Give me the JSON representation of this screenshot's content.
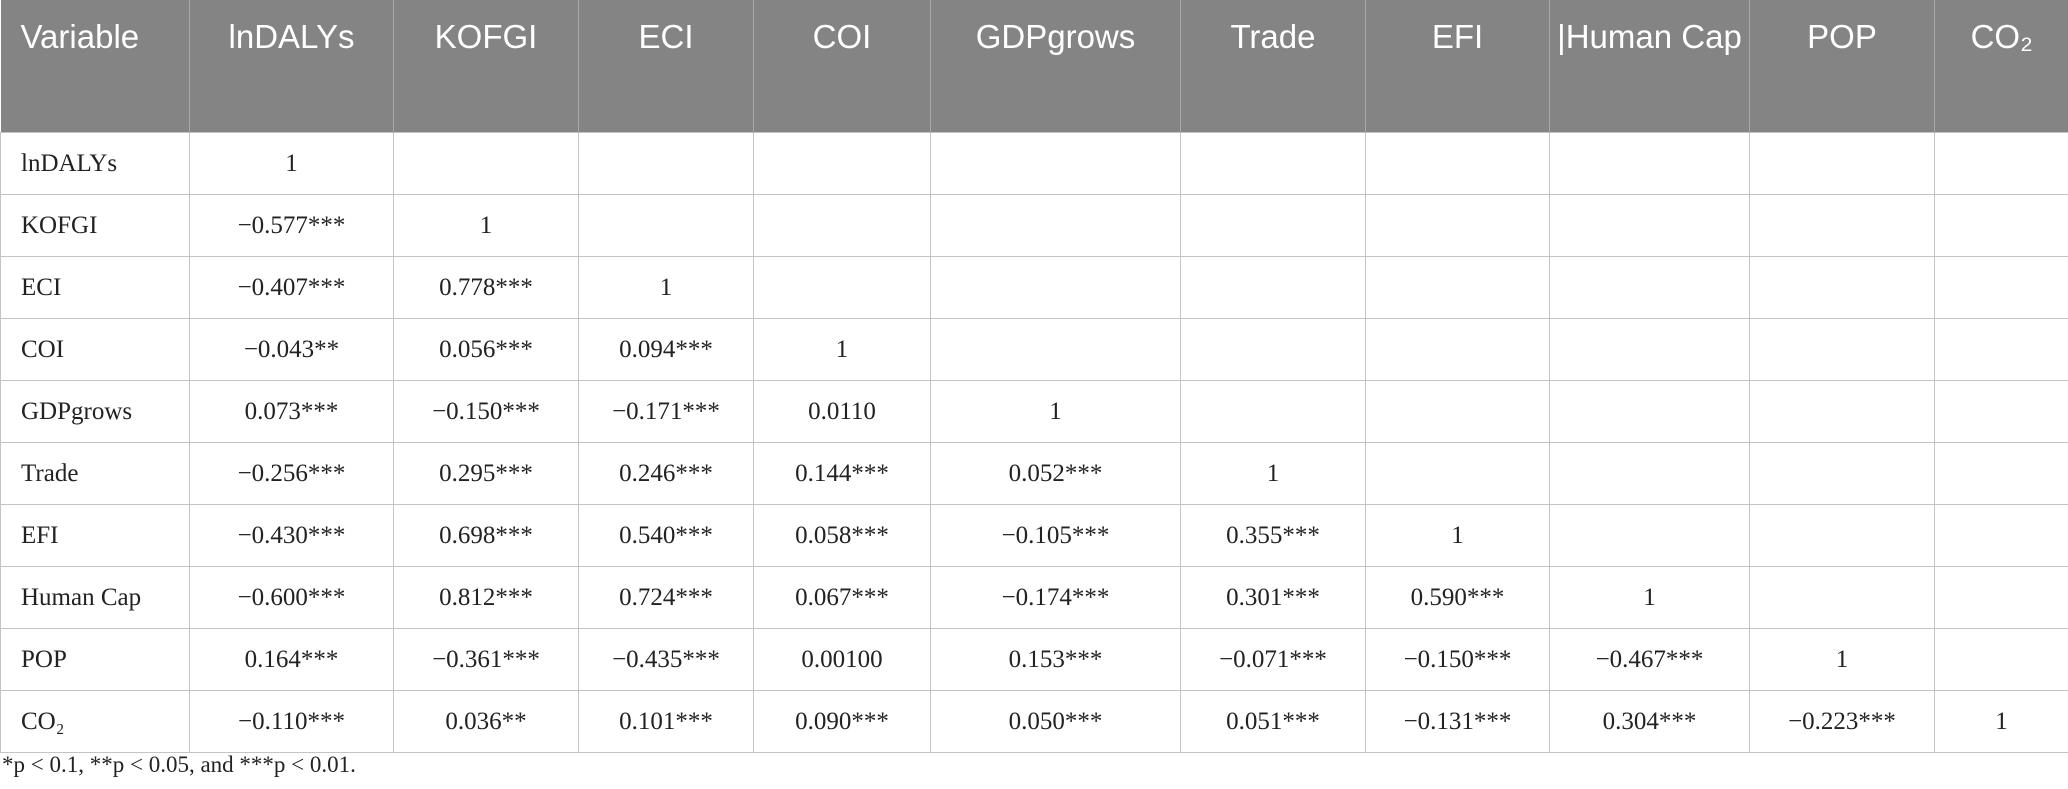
{
  "table": {
    "header": [
      "Variable",
      "lnDALYs",
      "KOFGI",
      "ECI",
      "COI",
      "GDPgrows",
      "Trade",
      "EFI",
      "|Human Cap",
      "POP",
      "CO₂"
    ],
    "rows": [
      [
        "lnDALYs",
        "1"
      ],
      [
        "KOFGI",
        "−0.577***",
        "1"
      ],
      [
        "ECI",
        "−0.407***",
        "0.778***",
        "1"
      ],
      [
        "COI",
        "−0.043**",
        "0.056***",
        "0.094***",
        "1"
      ],
      [
        "GDPgrows",
        "0.073***",
        "−0.150***",
        "−0.171***",
        "0.0110",
        "1"
      ],
      [
        "Trade",
        "−0.256***",
        "0.295***",
        "0.246***",
        "0.144***",
        "0.052***",
        "1"
      ],
      [
        "EFI",
        "−0.430***",
        "0.698***",
        "0.540***",
        "0.058***",
        "−0.105***",
        "0.355***",
        "1"
      ],
      [
        "Human Cap",
        "−0.600***",
        "0.812***",
        "0.724***",
        "0.067***",
        "−0.174***",
        "0.301***",
        "0.590***",
        "1"
      ],
      [
        "POP",
        "0.164***",
        "−0.361***",
        "−0.435***",
        "0.00100",
        "0.153***",
        "−0.071***",
        "−0.150***",
        "−0.467***",
        "1"
      ],
      [
        "CO₂",
        "−0.110***",
        "0.036**",
        "0.101***",
        "0.090***",
        "0.050***",
        "0.051***",
        "−0.131***",
        "0.304***",
        "−0.223***",
        "1"
      ]
    ],
    "footnote": "*p < 0.1, **p < 0.05, and ***p < 0.01."
  }
}
